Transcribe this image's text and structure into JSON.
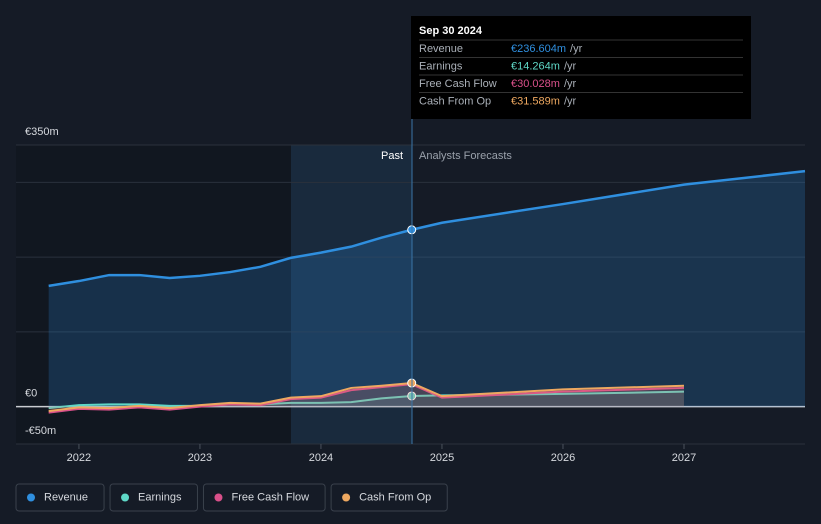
{
  "chart_data": {
    "type": "line",
    "x": [
      2021.75,
      2022.0,
      2022.25,
      2022.5,
      2022.75,
      2023.0,
      2023.25,
      2023.5,
      2023.75,
      2024.0,
      2024.25,
      2024.5,
      2024.75,
      2025.0,
      2026.0,
      2027.0,
      2028.0
    ],
    "series": [
      {
        "name": "Revenue",
        "color": "#2f8fdf",
        "values": [
          161.6,
          168,
          176,
          176,
          172,
          175,
          180,
          187,
          199,
          206,
          214,
          226,
          236.604,
          246,
          271,
          297,
          315
        ]
      },
      {
        "name": "Earnings",
        "color": "#5fd8c7",
        "values": [
          -2,
          2,
          3,
          3,
          1,
          1,
          3,
          3,
          5,
          5,
          6,
          11,
          14.264,
          15,
          17,
          20,
          null
        ]
      },
      {
        "name": "Free Cash Flow",
        "color": "#d9508a",
        "values": [
          -8,
          -3,
          -4,
          -1,
          -4,
          0,
          3,
          2,
          10,
          12,
          22,
          26,
          30.028,
          12,
          20,
          25,
          null
        ]
      },
      {
        "name": "Cash From Op",
        "color": "#eea860",
        "values": [
          -6,
          -1,
          -2,
          1,
          -2,
          2,
          5,
          4,
          12,
          14,
          25,
          28,
          31.589,
          14,
          23,
          28,
          null
        ]
      }
    ],
    "xlim": [
      2021.48,
      2028.0
    ],
    "xticks": [
      2022,
      2023,
      2024,
      2025,
      2026,
      2027
    ],
    "ylim": [
      -50,
      350
    ],
    "yticks": [
      {
        "value": -50,
        "label": "-€50m"
      },
      {
        "value": 0,
        "label": "€0"
      },
      {
        "value": 100,
        "label": null
      },
      {
        "value": 200,
        "label": null
      },
      {
        "value": 300,
        "label": null
      },
      {
        "value": 350,
        "label": "€350m"
      }
    ],
    "grid": true,
    "past_label": "Past",
    "forecast_label": "Analysts Forecasts",
    "tooltip": {
      "date": "Sep 30 2024",
      "rows": [
        {
          "label": "Revenue",
          "value_label": "€236.604m",
          "unit": "/yr"
        },
        {
          "label": "Earnings",
          "value_label": "€14.264m",
          "unit": "/yr"
        },
        {
          "label": "Free Cash Flow",
          "value_label": "€30.028m",
          "unit": "/yr"
        },
        {
          "label": "Cash From Op",
          "value_label": "€31.589m",
          "unit": "/yr"
        }
      ]
    }
  }
}
